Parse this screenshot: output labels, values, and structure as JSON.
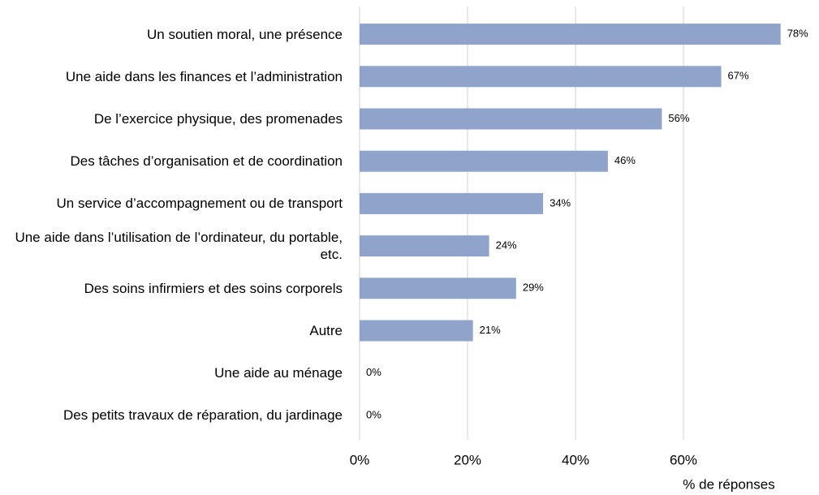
{
  "chart_data": {
    "type": "barh",
    "categories": [
      "Un soutien moral, une présence",
      "Une aide dans les finances et l’administration",
      "De l’exercice physique, des promenades",
      "Des tâches d’organisation et de coordination",
      "Un service d’accompagnement ou de transport",
      "Une aide dans l’utilisation de l’ordinateur, du portable, etc.",
      "Des soins infirmiers et des soins corporels",
      "Autre",
      "Une aide au ménage",
      "Des petits travaux de réparation, du jardinage"
    ],
    "values": [
      78,
      67,
      56,
      46,
      34,
      24,
      29,
      21,
      0,
      0
    ],
    "value_labels": [
      "78%",
      "67%",
      "56%",
      "46%",
      "34%",
      "24%",
      "29%",
      "21%",
      "0%",
      "0%"
    ],
    "color": "#8fa3cb",
    "xlabel": "% de réponses",
    "xlim": [
      0,
      80
    ],
    "xticks": [
      {
        "value": 0,
        "label": "0%"
      },
      {
        "value": 20,
        "label": "20%"
      },
      {
        "value": 40,
        "label": "40%"
      },
      {
        "value": 60,
        "label": "60%"
      }
    ],
    "grid": true
  }
}
